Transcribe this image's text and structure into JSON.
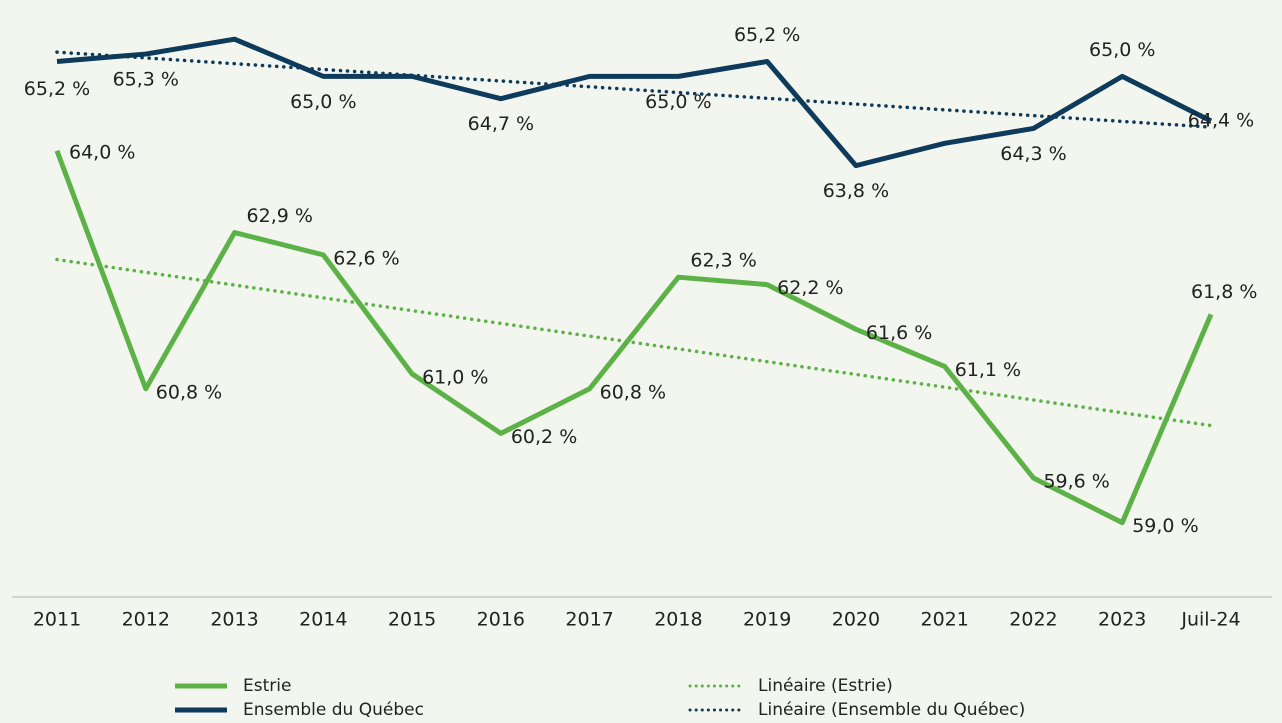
{
  "chart_data": {
    "type": "line",
    "categories": [
      "2011",
      "2012",
      "2013",
      "2014",
      "2015",
      "2016",
      "2017",
      "2018",
      "2019",
      "2020",
      "2021",
      "2022",
      "2023",
      "Juil-24"
    ],
    "series": [
      {
        "name": "Estrie",
        "color": "#5cb247",
        "values": [
          64.0,
          60.8,
          62.9,
          62.6,
          61.0,
          60.2,
          60.8,
          62.3,
          62.2,
          61.6,
          61.1,
          59.6,
          59.0,
          61.8
        ],
        "value_labels": [
          "64,0 %",
          "60,8 %",
          "62,9 %",
          "62,6 %",
          "61,0 %",
          "60,2 %",
          "60,8 %",
          "62,3 %",
          "62,2 %",
          "61,6 %",
          "61,1 %",
          "59,6 %",
          "59,0 %",
          "61,8 %"
        ]
      },
      {
        "name": "Ensemble du Québec",
        "color": "#0e3a5b",
        "values": [
          65.2,
          65.3,
          65.5,
          65.0,
          65.0,
          64.7,
          65.0,
          65.0,
          65.2,
          63.8,
          64.1,
          64.3,
          65.0,
          64.4
        ],
        "value_labels": [
          "65,2 %",
          "65,3 %",
          null,
          "65,0 %",
          null,
          "64,7 %",
          null,
          "65,0 %",
          "65,2 %",
          "63,8 %",
          null,
          "64,3 %",
          "65,0 %",
          "64,4 %"
        ]
      }
    ],
    "trendlines": [
      {
        "name": "Linéaire (Estrie)",
        "series": 0,
        "color": "#5cb247"
      },
      {
        "name": "Linéaire (Ensemble du Québec)",
        "series": 1,
        "color": "#0e3a5b"
      }
    ],
    "ylim": [
      58,
      66
    ]
  }
}
